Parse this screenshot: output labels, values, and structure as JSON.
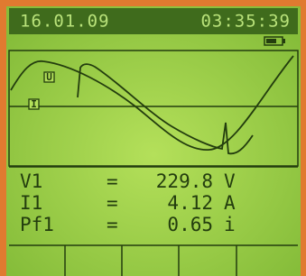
{
  "header": {
    "date": "16.01.09",
    "time": "03:35:39"
  },
  "waveform": {
    "voltage_label": "U",
    "current_label": "I"
  },
  "readings": [
    {
      "name": "V1",
      "sign": "=",
      "value": "229.8",
      "unit": "V"
    },
    {
      "name": "I1",
      "sign": "=",
      "value": "4.12",
      "unit": "A"
    },
    {
      "name": "Pf1",
      "sign": "=",
      "value": "0.65",
      "unit": "i"
    }
  ]
}
